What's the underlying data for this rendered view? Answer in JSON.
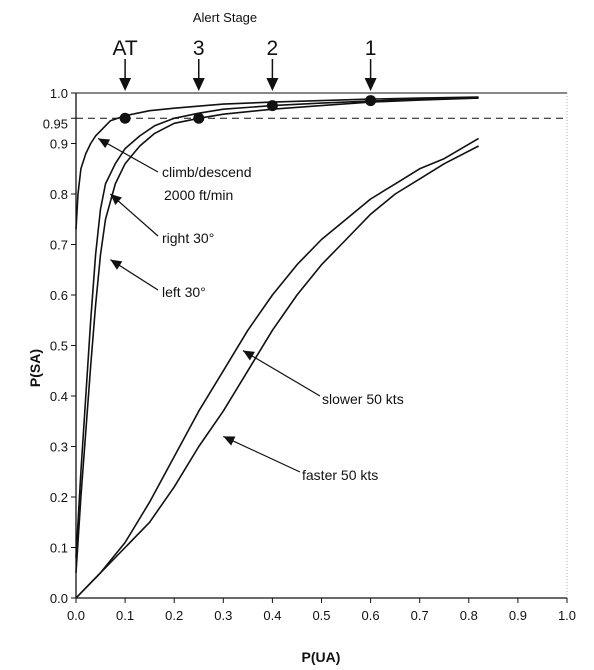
{
  "chart_data": {
    "type": "line",
    "title": "",
    "header": "Alert Stage",
    "xlabel": "P(UA)",
    "ylabel": "P(SA)",
    "xlim": [
      0.0,
      1.0
    ],
    "ylim": [
      0.0,
      1.0
    ],
    "xticks": [
      "0.0",
      "0.1",
      "0.2",
      "0.3",
      "0.4",
      "0.5",
      "0.6",
      "0.7",
      "0.8",
      "0.9",
      "1.0"
    ],
    "yticks": [
      "0.0",
      "0.1",
      "0.2",
      "0.3",
      "0.4",
      "0.5",
      "0.6",
      "0.7",
      "0.8",
      "0.9",
      "1.0"
    ],
    "extra_ytick": "0.95",
    "reference_line": {
      "y": 0.95,
      "style": "dashed"
    },
    "grid": false,
    "alert_stages": [
      {
        "label": "AT",
        "x": 0.1
      },
      {
        "label": "3",
        "x": 0.25
      },
      {
        "label": "2",
        "x": 0.4
      },
      {
        "label": "1",
        "x": 0.6
      }
    ],
    "stage_markers": [
      {
        "x": 0.1,
        "y": 0.95
      },
      {
        "x": 0.25,
        "y": 0.95
      },
      {
        "x": 0.4,
        "y": 0.975
      },
      {
        "x": 0.6,
        "y": 0.985
      }
    ],
    "series": [
      {
        "values": [
          [
            0.0,
            0.73
          ],
          [
            0.004,
            0.8
          ],
          [
            0.01,
            0.85
          ],
          [
            0.02,
            0.88
          ],
          [
            0.03,
            0.9
          ],
          [
            0.04,
            0.915
          ],
          [
            0.05,
            0.925
          ],
          [
            0.06,
            0.935
          ],
          [
            0.07,
            0.945
          ],
          [
            0.1,
            0.955
          ],
          [
            0.15,
            0.965
          ],
          [
            0.2,
            0.97
          ],
          [
            0.3,
            0.978
          ],
          [
            0.4,
            0.982
          ],
          [
            0.5,
            0.985
          ],
          [
            0.6,
            0.988
          ],
          [
            0.7,
            0.99
          ],
          [
            0.82,
            0.992
          ]
        ]
      },
      {
        "values": [
          [
            0.0,
            0.08
          ],
          [
            0.01,
            0.25
          ],
          [
            0.02,
            0.4
          ],
          [
            0.03,
            0.55
          ],
          [
            0.04,
            0.68
          ],
          [
            0.05,
            0.77
          ],
          [
            0.06,
            0.82
          ],
          [
            0.08,
            0.86
          ],
          [
            0.1,
            0.89
          ],
          [
            0.13,
            0.915
          ],
          [
            0.16,
            0.935
          ],
          [
            0.2,
            0.95
          ],
          [
            0.25,
            0.96
          ],
          [
            0.3,
            0.968
          ],
          [
            0.4,
            0.975
          ],
          [
            0.5,
            0.98
          ],
          [
            0.6,
            0.984
          ],
          [
            0.7,
            0.988
          ],
          [
            0.82,
            0.99
          ]
        ]
      },
      {
        "values": [
          [
            0.0,
            0.05
          ],
          [
            0.01,
            0.2
          ],
          [
            0.02,
            0.33
          ],
          [
            0.03,
            0.46
          ],
          [
            0.04,
            0.58
          ],
          [
            0.05,
            0.68
          ],
          [
            0.06,
            0.75
          ],
          [
            0.08,
            0.82
          ],
          [
            0.1,
            0.86
          ],
          [
            0.13,
            0.895
          ],
          [
            0.16,
            0.92
          ],
          [
            0.2,
            0.94
          ],
          [
            0.25,
            0.95
          ],
          [
            0.3,
            0.958
          ],
          [
            0.4,
            0.968
          ],
          [
            0.5,
            0.975
          ],
          [
            0.6,
            0.982
          ],
          [
            0.7,
            0.986
          ],
          [
            0.82,
            0.99
          ]
        ]
      },
      {
        "values": [
          [
            0.0,
            0.0
          ],
          [
            0.05,
            0.05
          ],
          [
            0.1,
            0.11
          ],
          [
            0.15,
            0.19
          ],
          [
            0.2,
            0.28
          ],
          [
            0.25,
            0.37
          ],
          [
            0.3,
            0.45
          ],
          [
            0.35,
            0.53
          ],
          [
            0.4,
            0.6
          ],
          [
            0.45,
            0.66
          ],
          [
            0.5,
            0.71
          ],
          [
            0.55,
            0.75
          ],
          [
            0.6,
            0.79
          ],
          [
            0.65,
            0.82
          ],
          [
            0.7,
            0.85
          ],
          [
            0.75,
            0.87
          ],
          [
            0.82,
            0.91
          ]
        ]
      },
      {
        "values": [
          [
            0.0,
            0.0
          ],
          [
            0.05,
            0.05
          ],
          [
            0.1,
            0.1
          ],
          [
            0.15,
            0.15
          ],
          [
            0.2,
            0.22
          ],
          [
            0.25,
            0.3
          ],
          [
            0.3,
            0.37
          ],
          [
            0.35,
            0.45
          ],
          [
            0.4,
            0.53
          ],
          [
            0.45,
            0.6
          ],
          [
            0.5,
            0.66
          ],
          [
            0.55,
            0.71
          ],
          [
            0.6,
            0.76
          ],
          [
            0.65,
            0.8
          ],
          [
            0.7,
            0.83
          ],
          [
            0.75,
            0.86
          ],
          [
            0.82,
            0.895
          ]
        ]
      }
    ],
    "annotations": [
      {
        "lines": [
          "climb/descend",
          "2000 ft/min"
        ],
        "target": [
          0.045,
          0.91
        ]
      },
      {
        "lines": [
          "right 30°"
        ],
        "target": [
          0.07,
          0.8
        ]
      },
      {
        "lines": [
          "left 30°"
        ],
        "target": [
          0.07,
          0.67
        ]
      },
      {
        "lines": [
          "slower 50 kts"
        ],
        "target": [
          0.34,
          0.49
        ]
      },
      {
        "lines": [
          "faster 50 kts"
        ],
        "target": [
          0.3,
          0.32
        ]
      }
    ]
  }
}
